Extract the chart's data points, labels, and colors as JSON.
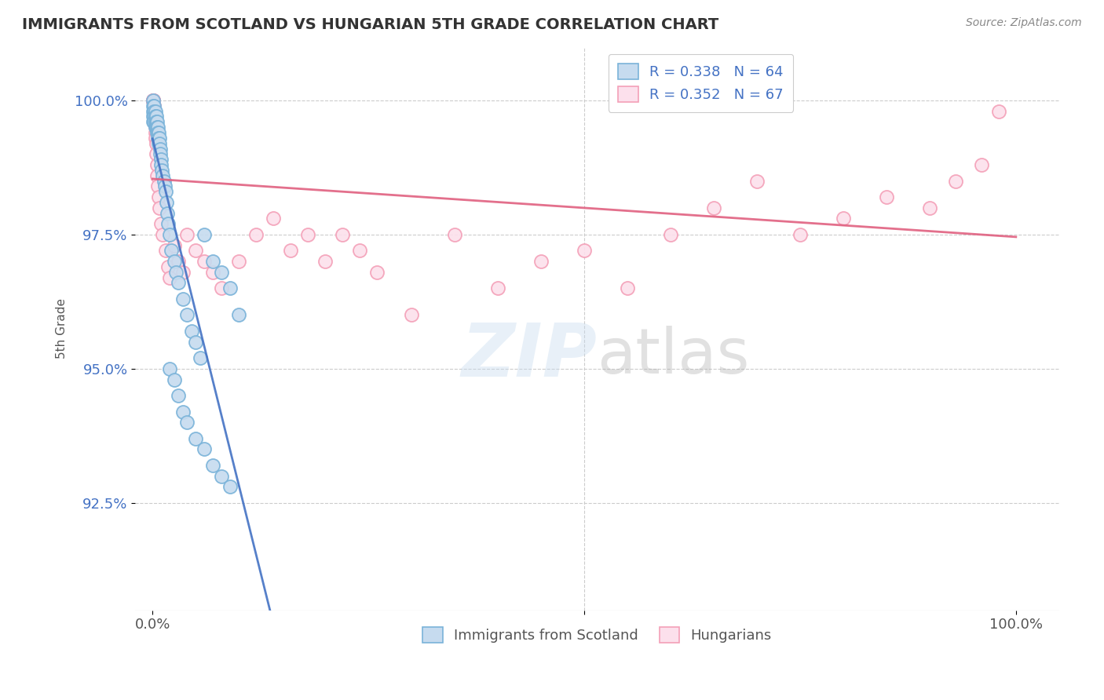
{
  "title": "IMMIGRANTS FROM SCOTLAND VS HUNGARIAN 5TH GRADE CORRELATION CHART",
  "source": "Source: ZipAtlas.com",
  "ylabel": "5th Grade",
  "watermark_zip": "ZIP",
  "watermark_atlas": "atlas",
  "r_blue": 0.338,
  "n_blue": 64,
  "r_pink": 0.352,
  "n_pink": 67,
  "blue_color": "#7ab3d9",
  "pink_color": "#f4a0b8",
  "blue_fill": "#c6dbef",
  "pink_fill": "#fce0ec",
  "trend_blue": "#4472c4",
  "trend_pink": "#e06080",
  "ytick_labels": [
    "92.5%",
    "95.0%",
    "97.5%",
    "100.0%"
  ],
  "ytick_values": [
    0.925,
    0.95,
    0.975,
    1.0
  ],
  "ymin": 0.905,
  "ymax": 1.01,
  "xmin": -0.02,
  "xmax": 1.05,
  "blue_x": [
    0.001,
    0.001,
    0.001,
    0.001,
    0.001,
    0.002,
    0.002,
    0.002,
    0.002,
    0.003,
    0.003,
    0.003,
    0.003,
    0.004,
    0.004,
    0.004,
    0.005,
    0.005,
    0.005,
    0.006,
    0.006,
    0.006,
    0.007,
    0.007,
    0.007,
    0.008,
    0.008,
    0.009,
    0.009,
    0.01,
    0.01,
    0.011,
    0.012,
    0.013,
    0.014,
    0.015,
    0.016,
    0.017,
    0.018,
    0.02,
    0.022,
    0.025,
    0.027,
    0.03,
    0.035,
    0.04,
    0.045,
    0.05,
    0.055,
    0.06,
    0.07,
    0.08,
    0.09,
    0.1,
    0.02,
    0.025,
    0.03,
    0.035,
    0.04,
    0.05,
    0.06,
    0.07,
    0.08,
    0.09
  ],
  "blue_y": [
    1.0,
    0.999,
    0.998,
    0.997,
    0.996,
    0.999,
    0.998,
    0.997,
    0.996,
    0.998,
    0.997,
    0.996,
    0.995,
    0.997,
    0.996,
    0.995,
    0.996,
    0.995,
    0.994,
    0.995,
    0.994,
    0.993,
    0.994,
    0.993,
    0.992,
    0.993,
    0.992,
    0.991,
    0.99,
    0.989,
    0.988,
    0.987,
    0.986,
    0.985,
    0.984,
    0.983,
    0.981,
    0.979,
    0.977,
    0.975,
    0.972,
    0.97,
    0.968,
    0.966,
    0.963,
    0.96,
    0.957,
    0.955,
    0.952,
    0.975,
    0.97,
    0.968,
    0.965,
    0.96,
    0.95,
    0.948,
    0.945,
    0.942,
    0.94,
    0.937,
    0.935,
    0.932,
    0.93,
    0.928
  ],
  "pink_x": [
    0.001,
    0.001,
    0.001,
    0.001,
    0.001,
    0.001,
    0.001,
    0.001,
    0.001,
    0.001,
    0.001,
    0.001,
    0.001,
    0.001,
    0.002,
    0.002,
    0.002,
    0.002,
    0.002,
    0.003,
    0.003,
    0.003,
    0.004,
    0.004,
    0.005,
    0.005,
    0.006,
    0.007,
    0.008,
    0.01,
    0.012,
    0.015,
    0.018,
    0.02,
    0.025,
    0.03,
    0.035,
    0.04,
    0.05,
    0.06,
    0.07,
    0.08,
    0.1,
    0.12,
    0.14,
    0.16,
    0.18,
    0.2,
    0.22,
    0.24,
    0.26,
    0.3,
    0.35,
    0.4,
    0.45,
    0.5,
    0.55,
    0.6,
    0.65,
    0.7,
    0.75,
    0.8,
    0.85,
    0.9,
    0.93,
    0.96,
    0.98
  ],
  "pink_y": [
    1.0,
    1.0,
    1.0,
    1.0,
    1.0,
    1.0,
    1.0,
    1.0,
    1.0,
    1.0,
    1.0,
    1.0,
    1.0,
    1.0,
    0.999,
    0.999,
    0.998,
    0.997,
    0.996,
    0.995,
    0.994,
    0.993,
    0.992,
    0.99,
    0.988,
    0.986,
    0.984,
    0.982,
    0.98,
    0.977,
    0.975,
    0.972,
    0.969,
    0.967,
    0.973,
    0.97,
    0.968,
    0.975,
    0.972,
    0.97,
    0.968,
    0.965,
    0.97,
    0.975,
    0.978,
    0.972,
    0.975,
    0.97,
    0.975,
    0.972,
    0.968,
    0.96,
    0.975,
    0.965,
    0.97,
    0.972,
    0.965,
    0.975,
    0.98,
    0.985,
    0.975,
    0.978,
    0.982,
    0.98,
    0.985,
    0.988,
    0.998
  ]
}
